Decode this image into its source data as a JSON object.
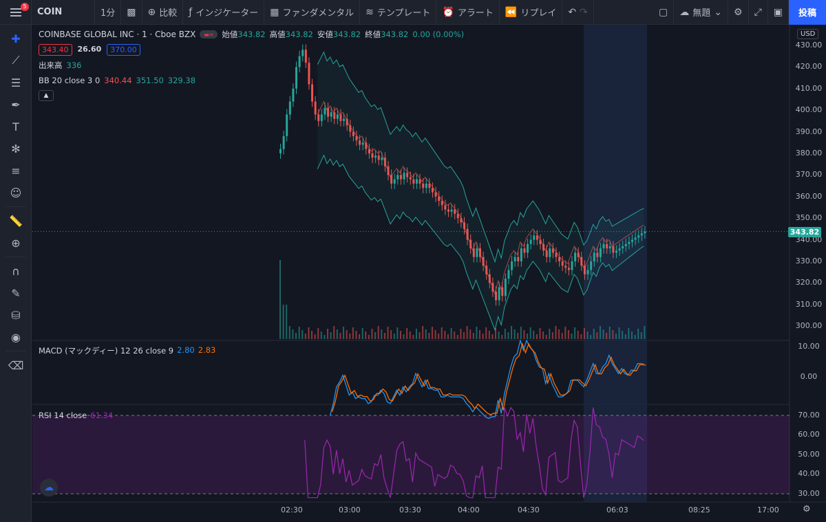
{
  "toolbar": {
    "badge_count": "5",
    "symbol": "COIN",
    "interval": "1分",
    "compare": "比較",
    "indicators": "インジケーター",
    "fundamentals": "ファンダメンタル",
    "templates": "テンプレート",
    "alerts": "アラート",
    "replay": "リプレイ",
    "layout_name": "無題",
    "post": "投稿"
  },
  "legend": {
    "title": "COINBASE GLOBAL INC · 1 · Cboe BZX",
    "open_label": "始値",
    "open": "343.82",
    "high_label": "高値",
    "high": "343.82",
    "low_label": "安値",
    "low": "343.82",
    "close_label": "終値",
    "close": "343.82",
    "change": "0.00 (0.00%)",
    "sell_price": "343.40",
    "spread": "26.60",
    "buy_price": "370.00",
    "volume_label": "出来高",
    "volume": "336",
    "bb_label": "BB 20 close 3 0",
    "bb_basis": "340.44",
    "bb_upper": "351.50",
    "bb_lower": "329.38",
    "macd_label": "MACD (マックディー) 12 26 close 9",
    "macd_value": "2.80",
    "macd_signal": "2.83",
    "rsi_label": "RSI 14 close",
    "rsi_value": "61.34"
  },
  "price_axis": {
    "currency": "USD",
    "current_price": "343.82",
    "labels": [
      "430.00",
      "420.00",
      "410.00",
      "400.00",
      "390.00",
      "380.00",
      "370.00",
      "360.00",
      "350.00",
      "340.00",
      "330.00",
      "320.00",
      "310.00",
      "300.00"
    ]
  },
  "macd_axis": {
    "labels": [
      "10.00",
      "0.00"
    ]
  },
  "rsi_axis": {
    "labels": [
      "70.00",
      "60.00",
      "50.00",
      "40.00",
      "30.00"
    ]
  },
  "time_axis": {
    "labels": [
      "02:30",
      "03:00",
      "03:30",
      "04:00",
      "04:30",
      "06:03",
      "08:25",
      "17:00"
    ]
  },
  "colors": {
    "up": "#26a69a",
    "down": "#ef5350",
    "background": "#131722",
    "accent": "#2962ff",
    "rsi": "#9c27b0",
    "macd": "#2196f3",
    "signal": "#ff6d00"
  },
  "chart_data": {
    "type": "candlestick",
    "series_path": [
      [
        0,
        382
      ],
      [
        1,
        388
      ],
      [
        2,
        398
      ],
      [
        3,
        404
      ],
      [
        4,
        410
      ],
      [
        5,
        420
      ],
      [
        6,
        425
      ],
      [
        7,
        428
      ],
      [
        8,
        422
      ],
      [
        9,
        412
      ],
      [
        10,
        404
      ],
      [
        11,
        398
      ],
      [
        12,
        395
      ],
      [
        13,
        398
      ],
      [
        14,
        401
      ],
      [
        15,
        397
      ],
      [
        16,
        399
      ],
      [
        17,
        396
      ],
      [
        18,
        398
      ],
      [
        19,
        395
      ],
      [
        20,
        396
      ],
      [
        21,
        393
      ],
      [
        22,
        390
      ],
      [
        23,
        388
      ],
      [
        24,
        386
      ],
      [
        25,
        384
      ],
      [
        26,
        385
      ],
      [
        27,
        382
      ],
      [
        28,
        380
      ],
      [
        29,
        378
      ],
      [
        30,
        379
      ],
      [
        31,
        377
      ],
      [
        32,
        378
      ],
      [
        33,
        374
      ],
      [
        34,
        370
      ],
      [
        35,
        366
      ],
      [
        36,
        368
      ],
      [
        37,
        370
      ],
      [
        38,
        368
      ],
      [
        39,
        371
      ],
      [
        40,
        369
      ],
      [
        41,
        368
      ],
      [
        42,
        366
      ],
      [
        43,
        368
      ],
      [
        44,
        366
      ],
      [
        45,
        364
      ],
      [
        46,
        366
      ],
      [
        47,
        364
      ],
      [
        48,
        362
      ],
      [
        49,
        360
      ],
      [
        50,
        358
      ],
      [
        51,
        356
      ],
      [
        52,
        354
      ],
      [
        53,
        353
      ],
      [
        54,
        354
      ],
      [
        55,
        352
      ],
      [
        56,
        350
      ],
      [
        57,
        348
      ],
      [
        58,
        345
      ],
      [
        59,
        340
      ],
      [
        60,
        336
      ],
      [
        61,
        332
      ],
      [
        62,
        336
      ],
      [
        63,
        332
      ],
      [
        64,
        328
      ],
      [
        65,
        324
      ],
      [
        66,
        320
      ],
      [
        67,
        316
      ],
      [
        68,
        312
      ],
      [
        69,
        318
      ],
      [
        70,
        314
      ],
      [
        71,
        322
      ],
      [
        72,
        326
      ],
      [
        73,
        330
      ],
      [
        74,
        332
      ],
      [
        75,
        330
      ],
      [
        76,
        336
      ],
      [
        77,
        334
      ],
      [
        78,
        338
      ],
      [
        79,
        340
      ],
      [
        80,
        342
      ],
      [
        81,
        340
      ],
      [
        82,
        338
      ],
      [
        83,
        335
      ],
      [
        84,
        332
      ],
      [
        85,
        336
      ],
      [
        86,
        334
      ],
      [
        87,
        332
      ],
      [
        88,
        330
      ],
      [
        89,
        328
      ],
      [
        90,
        327
      ],
      [
        91,
        326
      ],
      [
        92,
        330
      ],
      [
        93,
        334
      ],
      [
        94,
        332
      ],
      [
        95,
        328
      ],
      [
        96,
        324
      ],
      [
        97,
        326
      ],
      [
        98,
        330
      ],
      [
        99,
        334
      ],
      [
        100,
        332
      ],
      [
        101,
        336
      ],
      [
        102,
        338
      ],
      [
        103,
        336
      ],
      [
        104,
        337
      ],
      [
        105,
        334
      ],
      [
        106,
        335
      ],
      [
        107,
        336
      ],
      [
        108,
        337
      ],
      [
        109,
        338
      ],
      [
        110,
        339
      ],
      [
        111,
        340
      ],
      [
        112,
        341
      ],
      [
        113,
        342
      ],
      [
        114,
        343
      ],
      [
        115,
        343.8
      ]
    ],
    "volume_spike": 336
  }
}
